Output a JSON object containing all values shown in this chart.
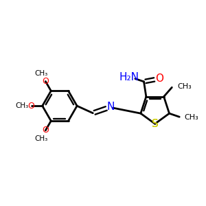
{
  "bg_color": "#ffffff",
  "bond_color": "#000000",
  "N_color": "#0000ff",
  "O_color": "#ff0000",
  "S_color": "#cccc00",
  "bond_lw": 2.0,
  "fig_w": 3.0,
  "fig_h": 3.0,
  "dpi": 100,
  "xlim": [
    -2.5,
    4.5
  ],
  "ylim": [
    -1.5,
    2.0
  ]
}
